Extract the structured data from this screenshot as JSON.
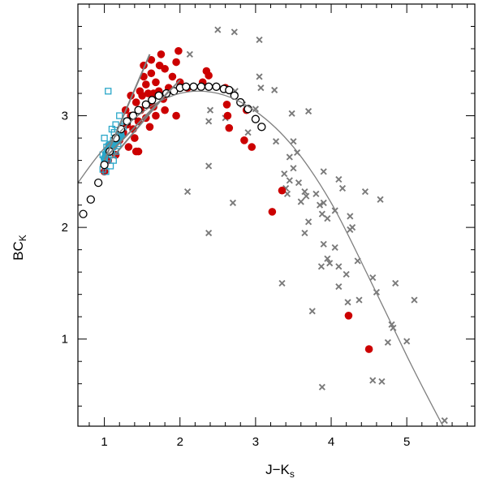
{
  "chart_data": {
    "type": "scatter",
    "xlabel": "J−K",
    "xlabel_sub": "s",
    "ylabel": "BC",
    "ylabel_sub": "K",
    "xlim": [
      0.65,
      5.9
    ],
    "ylim": [
      0.22,
      4.0
    ],
    "x_ticks": [
      1,
      2,
      3,
      4,
      5
    ],
    "y_ticks": [
      1,
      2,
      3
    ],
    "x_tick_labels": [
      "1",
      "2",
      "3",
      "4",
      "5"
    ],
    "y_tick_labels": [
      "1",
      "2",
      "3"
    ],
    "grid": false,
    "colors": {
      "red": "#cc0000",
      "cyan": "#2aa7c9",
      "gray": "#7a7a7a",
      "curve": "#7f7f7f",
      "open_circle": "#000000"
    },
    "series": [
      {
        "marker": "cross",
        "color": "#7a7a7a",
        "points": [
          [
            2.5,
            3.77
          ],
          [
            2.72,
            3.75
          ],
          [
            3.05,
            3.68
          ],
          [
            2.13,
            3.55
          ],
          [
            3.05,
            3.35
          ],
          [
            3.07,
            3.25
          ],
          [
            3.25,
            3.23
          ],
          [
            2.73,
            3.22
          ],
          [
            2.83,
            3.1
          ],
          [
            3.0,
            3.06
          ],
          [
            2.4,
            3.05
          ],
          [
            3.48,
            3.02
          ],
          [
            3.7,
            3.04
          ],
          [
            2.38,
            2.95
          ],
          [
            2.6,
            2.98
          ],
          [
            3.27,
            2.77
          ],
          [
            3.5,
            2.77
          ],
          [
            2.9,
            2.85
          ],
          [
            3.45,
            2.63
          ],
          [
            3.55,
            2.67
          ],
          [
            3.5,
            2.53
          ],
          [
            3.38,
            2.48
          ],
          [
            3.45,
            2.42
          ],
          [
            3.57,
            2.4
          ],
          [
            3.4,
            2.35
          ],
          [
            3.65,
            2.32
          ],
          [
            3.42,
            2.3
          ],
          [
            3.6,
            2.23
          ],
          [
            3.67,
            2.28
          ],
          [
            3.8,
            2.3
          ],
          [
            3.9,
            2.5
          ],
          [
            4.1,
            2.43
          ],
          [
            4.15,
            2.35
          ],
          [
            4.45,
            2.32
          ],
          [
            4.65,
            2.25
          ],
          [
            3.85,
            2.2
          ],
          [
            3.9,
            2.22
          ],
          [
            4.05,
            2.15
          ],
          [
            3.88,
            2.12
          ],
          [
            3.7,
            2.05
          ],
          [
            3.95,
            2.08
          ],
          [
            4.25,
            2.1
          ],
          [
            3.65,
            1.95
          ],
          [
            3.9,
            1.85
          ],
          [
            4.05,
            1.82
          ],
          [
            3.95,
            1.72
          ],
          [
            3.87,
            1.65
          ],
          [
            4.1,
            1.65
          ],
          [
            4.2,
            1.58
          ],
          [
            4.35,
            1.7
          ],
          [
            3.98,
            1.68
          ],
          [
            4.25,
            1.98
          ],
          [
            4.28,
            2.0
          ],
          [
            4.55,
            1.55
          ],
          [
            4.6,
            1.42
          ],
          [
            4.1,
            1.47
          ],
          [
            4.22,
            1.33
          ],
          [
            4.37,
            1.35
          ],
          [
            3.75,
            1.25
          ],
          [
            4.85,
            1.5
          ],
          [
            5.1,
            1.35
          ],
          [
            4.8,
            1.13
          ],
          [
            4.82,
            1.1
          ],
          [
            4.75,
            0.97
          ],
          [
            5.0,
            0.98
          ],
          [
            3.88,
            0.57
          ],
          [
            4.55,
            0.63
          ],
          [
            4.67,
            0.62
          ],
          [
            5.5,
            0.27
          ],
          [
            3.35,
            1.5
          ],
          [
            2.1,
            2.32
          ],
          [
            2.38,
            1.95
          ],
          [
            2.7,
            2.22
          ],
          [
            2.38,
            2.55
          ]
        ]
      },
      {
        "marker": "filled-circle",
        "color": "#cc0000",
        "points": [
          [
            1.98,
            3.58
          ],
          [
            1.75,
            3.55
          ],
          [
            1.52,
            3.45
          ],
          [
            1.95,
            3.48
          ],
          [
            1.62,
            3.38
          ],
          [
            1.8,
            3.42
          ],
          [
            1.68,
            3.3
          ],
          [
            1.9,
            3.35
          ],
          [
            2.0,
            3.3
          ],
          [
            1.55,
            3.28
          ],
          [
            1.65,
            3.2
          ],
          [
            1.72,
            3.22
          ],
          [
            1.5,
            3.18
          ],
          [
            1.42,
            3.12
          ],
          [
            1.58,
            3.1
          ],
          [
            1.48,
            3.05
          ],
          [
            1.35,
            3.0
          ],
          [
            1.45,
            2.95
          ],
          [
            1.3,
            2.92
          ],
          [
            1.55,
            2.98
          ],
          [
            1.38,
            2.88
          ],
          [
            1.25,
            2.85
          ],
          [
            1.4,
            2.8
          ],
          [
            1.6,
            2.9
          ],
          [
            1.2,
            2.78
          ],
          [
            1.32,
            2.72
          ],
          [
            1.42,
            2.68
          ],
          [
            1.1,
            2.75
          ],
          [
            1.15,
            2.65
          ],
          [
            1.05,
            2.6
          ],
          [
            1.8,
            3.05
          ],
          [
            2.1,
            3.25
          ],
          [
            2.3,
            3.3
          ],
          [
            2.6,
            3.25
          ],
          [
            2.35,
            3.4
          ],
          [
            2.38,
            3.36
          ],
          [
            2.62,
            3.1
          ],
          [
            2.65,
            2.89
          ],
          [
            2.88,
            3.05
          ],
          [
            2.85,
            2.78
          ],
          [
            2.95,
            2.72
          ],
          [
            2.63,
            3.0
          ],
          [
            1.95,
            3.0
          ],
          [
            1.45,
            2.68
          ],
          [
            1.68,
            3.0
          ],
          [
            1.78,
            3.15
          ],
          [
            1.85,
            3.25
          ],
          [
            1.52,
            3.35
          ],
          [
            1.62,
            3.5
          ],
          [
            1.73,
            3.45
          ],
          [
            1.28,
            3.05
          ],
          [
            1.58,
            3.2
          ],
          [
            1.47,
            3.22
          ],
          [
            1.35,
            3.18
          ],
          [
            1.65,
            3.08
          ],
          [
            3.22,
            2.14
          ],
          [
            4.23,
            1.21
          ],
          [
            4.5,
            0.91
          ],
          [
            3.35,
            2.33
          ],
          [
            1.0,
            2.5
          ]
        ]
      },
      {
        "marker": "open-square",
        "color": "#2aa7c9",
        "points": [
          [
            1.05,
            3.22
          ],
          [
            1.2,
            3.0
          ],
          [
            1.15,
            2.92
          ],
          [
            1.1,
            2.88
          ],
          [
            1.22,
            2.85
          ],
          [
            1.0,
            2.8
          ],
          [
            1.12,
            2.78
          ],
          [
            1.18,
            2.75
          ],
          [
            1.03,
            2.72
          ],
          [
            1.08,
            2.7
          ],
          [
            1.15,
            2.68
          ],
          [
            0.98,
            2.65
          ],
          [
            1.05,
            2.62
          ],
          [
            1.12,
            2.6
          ],
          [
            1.0,
            2.58
          ],
          [
            1.08,
            2.55
          ],
          [
            0.98,
            2.52
          ],
          [
            1.02,
            2.5
          ],
          [
            1.1,
            2.65
          ],
          [
            1.25,
            2.9
          ],
          [
            1.2,
            2.82
          ],
          [
            1.13,
            2.85
          ],
          [
            1.27,
            2.95
          ]
        ]
      },
      {
        "marker": "filled-circle",
        "color": "#2aa7c9",
        "points": [
          [
            1.05,
            2.7
          ],
          [
            1.1,
            2.75
          ],
          [
            1.15,
            2.8
          ],
          [
            1.2,
            2.85
          ],
          [
            1.12,
            2.72
          ],
          [
            1.08,
            2.68
          ],
          [
            1.02,
            2.66
          ],
          [
            1.18,
            2.78
          ],
          [
            1.22,
            2.82
          ],
          [
            1.0,
            2.62
          ],
          [
            1.06,
            2.74
          ],
          [
            1.14,
            2.76
          ]
        ]
      },
      {
        "marker": "open-circle",
        "color": "#000000",
        "points": [
          [
            0.72,
            2.12
          ],
          [
            0.82,
            2.25
          ],
          [
            0.92,
            2.4
          ],
          [
            1.0,
            2.56
          ],
          [
            1.07,
            2.68
          ],
          [
            1.15,
            2.8
          ],
          [
            1.22,
            2.88
          ],
          [
            1.3,
            2.95
          ],
          [
            1.38,
            3.0
          ],
          [
            1.45,
            3.05
          ],
          [
            1.55,
            3.1
          ],
          [
            1.63,
            3.14
          ],
          [
            1.72,
            3.18
          ],
          [
            1.82,
            3.2
          ],
          [
            1.92,
            3.22
          ],
          [
            2.0,
            3.25
          ],
          [
            2.08,
            3.26
          ],
          [
            2.18,
            3.26
          ],
          [
            2.28,
            3.26
          ],
          [
            2.38,
            3.26
          ],
          [
            2.48,
            3.26
          ],
          [
            2.58,
            3.24
          ],
          [
            2.65,
            3.23
          ],
          [
            2.72,
            3.18
          ],
          [
            2.8,
            3.12
          ],
          [
            2.9,
            3.06
          ],
          [
            3.0,
            2.97
          ],
          [
            3.08,
            2.9
          ]
        ]
      }
    ],
    "curve": {
      "color": "#7f7f7f",
      "points": [
        [
          0.65,
          2.4
        ],
        [
          1.0,
          2.71
        ],
        [
          1.5,
          3.03
        ],
        [
          2.0,
          3.2
        ],
        [
          2.5,
          3.2
        ],
        [
          3.0,
          3.04
        ],
        [
          3.5,
          2.72
        ],
        [
          4.0,
          2.22
        ],
        [
          4.5,
          1.55
        ],
        [
          5.0,
          0.85
        ],
        [
          5.3,
          0.45
        ],
        [
          5.48,
          0.22
        ]
      ]
    },
    "fit_lines": [
      {
        "color": "#7f7f7f",
        "points": [
          [
            1.0,
            2.6
          ],
          [
            1.6,
            3.55
          ]
        ]
      },
      {
        "color": "#7f7f7f",
        "points": [
          [
            1.1,
            2.62
          ],
          [
            1.85,
            3.22
          ]
        ]
      },
      {
        "color": "#7f7f7f",
        "points": [
          [
            1.05,
            2.65
          ],
          [
            2.0,
            3.32
          ]
        ]
      }
    ]
  }
}
